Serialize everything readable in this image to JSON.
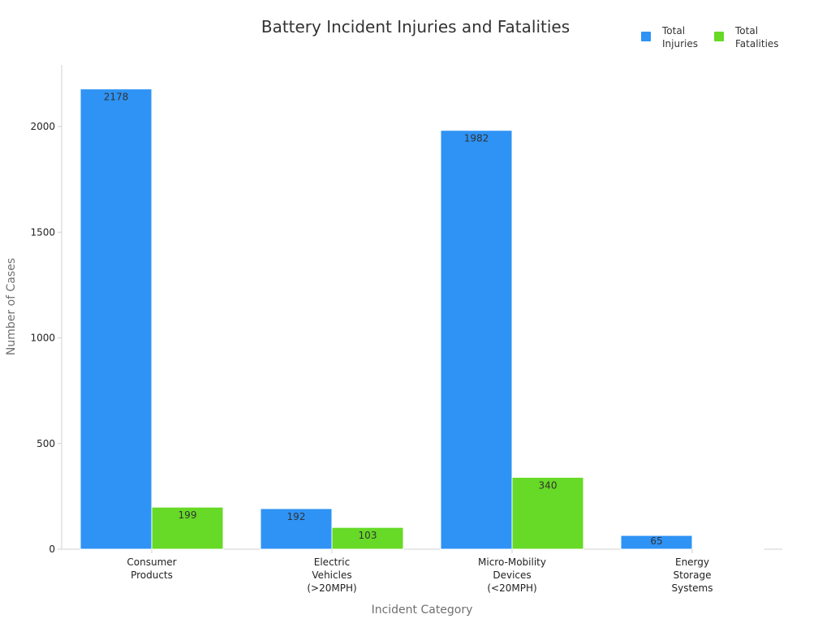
{
  "chart_data": {
    "type": "bar",
    "title": "Battery Incident Injuries and Fatalities",
    "xlabel": "Incident Category",
    "ylabel": "Number of Cases",
    "categories": [
      [
        "Consumer",
        "Products"
      ],
      [
        "Electric",
        "Vehicles",
        "(>20MPH)"
      ],
      [
        "Micro-Mobility",
        "Devices",
        "(<20MPH)"
      ],
      [
        "Energy",
        "Storage",
        "Systems"
      ]
    ],
    "series": [
      {
        "name": "Total Injuries",
        "legend_lines": [
          "Total",
          "Injuries"
        ],
        "color": "#2E93F5",
        "values": [
          2178,
          192,
          1982,
          65
        ]
      },
      {
        "name": "Total Fatalities",
        "legend_lines": [
          "Total",
          "Fatalities"
        ],
        "color": "#66DA26",
        "values": [
          199,
          103,
          340,
          3
        ]
      }
    ],
    "data_labels": [
      [
        "2178",
        "192",
        "1982",
        "65"
      ],
      [
        "199",
        "103",
        "340",
        ""
      ]
    ],
    "ylim": [
      0,
      2300
    ],
    "yticks": [
      0,
      500,
      1000,
      1500,
      2000
    ],
    "grid": false,
    "legend_position": "top-right"
  }
}
